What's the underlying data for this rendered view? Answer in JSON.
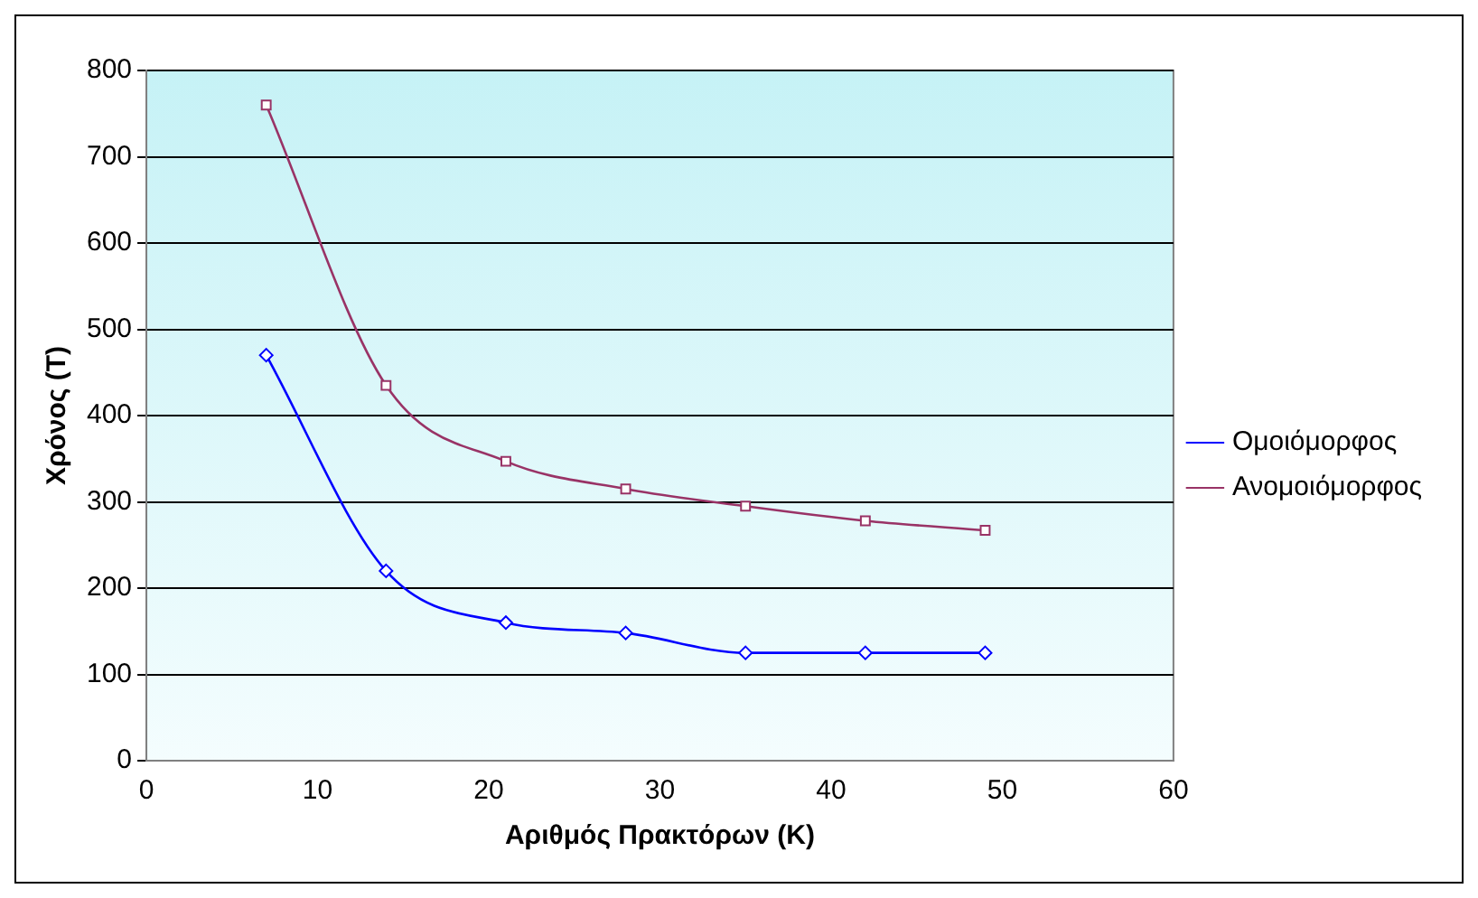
{
  "chart_data": {
    "type": "line",
    "xlabel": "Αριθμός Πρακτόρων (K)",
    "ylabel": "Χρόνος (T)",
    "x": [
      7,
      14,
      21,
      28,
      35,
      42,
      49
    ],
    "series": [
      {
        "name": "Ομοιόμορφος",
        "color": "#0000ff",
        "marker": "diamond",
        "values": [
          470,
          220,
          160,
          148,
          125,
          125,
          125
        ]
      },
      {
        "name": "Ανομοιόμορφος",
        "color": "#993366",
        "marker": "square",
        "values": [
          760,
          435,
          347,
          315,
          295,
          278,
          267
        ]
      }
    ],
    "xlim": [
      0,
      60
    ],
    "xticks": [
      0,
      10,
      20,
      30,
      40,
      50,
      60
    ],
    "ylim": [
      0,
      800
    ],
    "yticks": [
      0,
      100,
      200,
      300,
      400,
      500,
      600,
      700,
      800
    ],
    "grid": "y",
    "legend": "right",
    "line_style": "solid"
  }
}
